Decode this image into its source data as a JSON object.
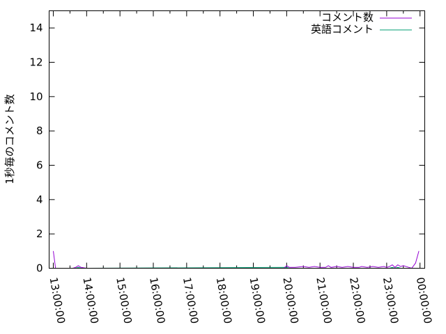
{
  "chart_data": {
    "type": "line",
    "title": "",
    "xlabel": "",
    "ylabel": "1秒毎のコメント数",
    "xlim": [
      "12:52:30",
      "00:08:30"
    ],
    "ylim": [
      0,
      15
    ],
    "yticks": [
      0,
      2,
      4,
      6,
      8,
      10,
      12,
      14
    ],
    "xtick_labels": [
      "13:00:00",
      "14:00:00",
      "15:00:00",
      "16:00:00",
      "17:00:00",
      "18:00:00",
      "19:00:00",
      "20:00:00",
      "21:00:00",
      "22:00:00",
      "23:00:00",
      "00:00:00"
    ],
    "grid": false,
    "legend_position": "top-right",
    "series": [
      {
        "name": "コメント数",
        "color": "#9400d3",
        "x": [
          "13:00",
          "13:04",
          "13:35",
          "13:40",
          "13:45",
          "13:50",
          "14:00",
          "19:55",
          "20:00",
          "20:05",
          "20:15",
          "20:30",
          "20:40",
          "20:50",
          "21:00",
          "21:10",
          "21:15",
          "21:20",
          "21:30",
          "21:40",
          "21:50",
          "22:00",
          "22:10",
          "22:15",
          "22:25",
          "22:35",
          "22:45",
          "22:55",
          "23:00",
          "23:05",
          "23:10",
          "23:15",
          "23:20",
          "23:25",
          "23:30",
          "23:40",
          "23:45",
          "23:52",
          "23:58"
        ],
        "y": [
          1,
          0,
          0,
          0.05,
          0.15,
          0.05,
          0,
          0,
          0.15,
          0.05,
          0.05,
          0.1,
          0.05,
          0.1,
          0.05,
          0.05,
          0.15,
          0.05,
          0.1,
          0.05,
          0.1,
          0.05,
          0.05,
          0.1,
          0.05,
          0.1,
          0.05,
          0.1,
          0.05,
          0.1,
          0.2,
          0.05,
          0.2,
          0.1,
          0.15,
          0.05,
          0,
          0.3,
          1
        ]
      },
      {
        "name": "英語コメント",
        "color": "#009e73",
        "x": [
          "13:00",
          "13:40",
          "13:45",
          "13:50",
          "20:00",
          "20:05",
          "23:05",
          "23:10",
          "23:15",
          "23:20",
          "23:25",
          "23:58"
        ],
        "y": [
          0,
          0,
          0.05,
          0,
          0.05,
          0,
          0,
          0.05,
          0,
          0.05,
          0,
          0
        ]
      }
    ]
  }
}
